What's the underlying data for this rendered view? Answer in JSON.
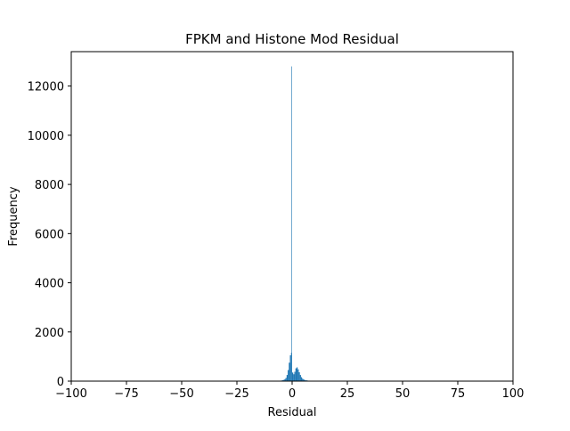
{
  "chart_data": {
    "type": "histogram",
    "title": "FPKM and Histone Mod Residual",
    "xlabel": "Residual",
    "ylabel": "Frequency",
    "xlim": [
      -100,
      100
    ],
    "ylim": [
      0,
      13400
    ],
    "xticks": [
      -100,
      -75,
      -50,
      -25,
      0,
      25,
      50,
      75,
      100
    ],
    "xtick_labels": [
      "−100",
      "−75",
      "−50",
      "−25",
      "0",
      "25",
      "50",
      "75",
      "100"
    ],
    "yticks": [
      0,
      2000,
      4000,
      6000,
      8000,
      10000,
      12000
    ],
    "ytick_labels": [
      "0",
      "2000",
      "4000",
      "6000",
      "8000",
      "10000",
      "12000"
    ],
    "grid": false,
    "bar_color": "#1f77b4",
    "bins": [
      {
        "x0": -7.0,
        "x1": -6.5,
        "count": 5
      },
      {
        "x0": -6.5,
        "x1": -6.0,
        "count": 8
      },
      {
        "x0": -6.0,
        "x1": -5.5,
        "count": 12
      },
      {
        "x0": -5.5,
        "x1": -5.0,
        "count": 18
      },
      {
        "x0": -5.0,
        "x1": -4.5,
        "count": 25
      },
      {
        "x0": -4.5,
        "x1": -4.0,
        "count": 35
      },
      {
        "x0": -4.0,
        "x1": -3.5,
        "count": 50
      },
      {
        "x0": -3.5,
        "x1": -3.0,
        "count": 80
      },
      {
        "x0": -3.0,
        "x1": -2.5,
        "count": 130
      },
      {
        "x0": -2.5,
        "x1": -2.0,
        "count": 250
      },
      {
        "x0": -2.0,
        "x1": -1.5,
        "count": 450
      },
      {
        "x0": -1.5,
        "x1": -1.0,
        "count": 750
      },
      {
        "x0": -1.0,
        "x1": -0.5,
        "count": 1050
      },
      {
        "x0": -0.5,
        "x1": -0.25,
        "count": 1150
      },
      {
        "x0": -0.25,
        "x1": 0.0,
        "count": 12800
      },
      {
        "x0": 0.0,
        "x1": 0.5,
        "count": 350
      },
      {
        "x0": 0.5,
        "x1": 1.0,
        "count": 280
      },
      {
        "x0": 1.0,
        "x1": 1.5,
        "count": 380
      },
      {
        "x0": 1.5,
        "x1": 2.0,
        "count": 520
      },
      {
        "x0": 2.0,
        "x1": 2.5,
        "count": 560
      },
      {
        "x0": 2.5,
        "x1": 3.0,
        "count": 480
      },
      {
        "x0": 3.0,
        "x1": 3.5,
        "count": 360
      },
      {
        "x0": 3.5,
        "x1": 4.0,
        "count": 250
      },
      {
        "x0": 4.0,
        "x1": 4.5,
        "count": 160
      },
      {
        "x0": 4.5,
        "x1": 5.0,
        "count": 100
      },
      {
        "x0": 5.0,
        "x1": 5.5,
        "count": 70
      },
      {
        "x0": 5.5,
        "x1": 6.0,
        "count": 45
      },
      {
        "x0": 6.0,
        "x1": 7.0,
        "count": 30
      },
      {
        "x0": 7.0,
        "x1": 8.0,
        "count": 18
      },
      {
        "x0": 8.0,
        "x1": 9.0,
        "count": 10
      },
      {
        "x0": 9.0,
        "x1": 10.0,
        "count": 6
      }
    ]
  }
}
